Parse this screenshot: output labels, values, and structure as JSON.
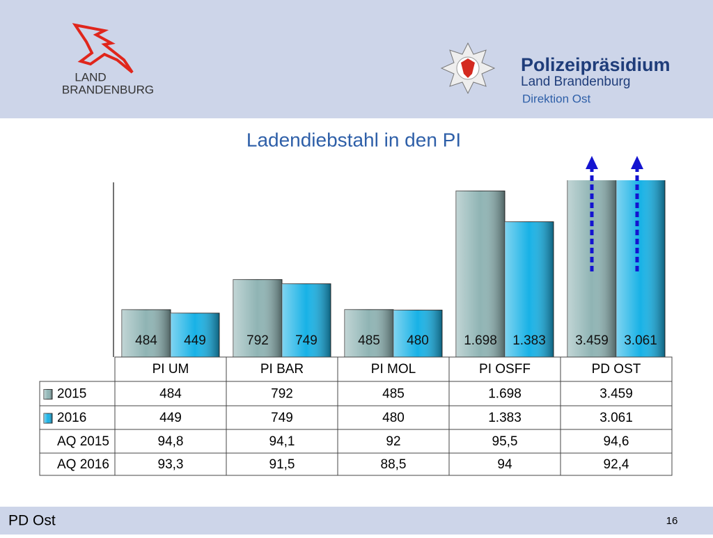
{
  "header": {
    "logo_text_1": "LAND",
    "logo_text_2": "BRANDENBURG",
    "org_title": "Polizeipräsidium",
    "org_subtitle": "Land Brandenburg",
    "org_unit": "Direktion Ost"
  },
  "chart_data": {
    "type": "bar",
    "title": "Ladendiebstahl in den PI",
    "categories": [
      "PI UM",
      "PI BAR",
      "PI MOL",
      "PI OSFF",
      "PD OST"
    ],
    "ylim": [
      0,
      1800
    ],
    "series": [
      {
        "name": "2015",
        "color": "#8fb4b4",
        "values": [
          484,
          792,
          485,
          1698,
          3459
        ],
        "value_labels": [
          "484",
          "792",
          "485",
          "1.698",
          "3.459"
        ]
      },
      {
        "name": "2016",
        "color": "#18b2e6",
        "values": [
          449,
          749,
          480,
          1383,
          3061
        ],
        "value_labels": [
          "449",
          "749",
          "480",
          "1.383",
          "3.061"
        ]
      }
    ],
    "table_rows": [
      {
        "name": "AQ 2015",
        "values": [
          94.8,
          94.1,
          92,
          95.5,
          94.6
        ],
        "value_labels": [
          "94,8",
          "94,1",
          "92",
          "95,5",
          "94,6"
        ]
      },
      {
        "name": "AQ 2016",
        "values": [
          93.3,
          91.5,
          88.5,
          94,
          92.4
        ],
        "value_labels": [
          "93,3",
          "91,5",
          "88,5",
          "94",
          "92,4"
        ]
      }
    ]
  },
  "footer": {
    "left": "PD Ost",
    "page": "16"
  }
}
